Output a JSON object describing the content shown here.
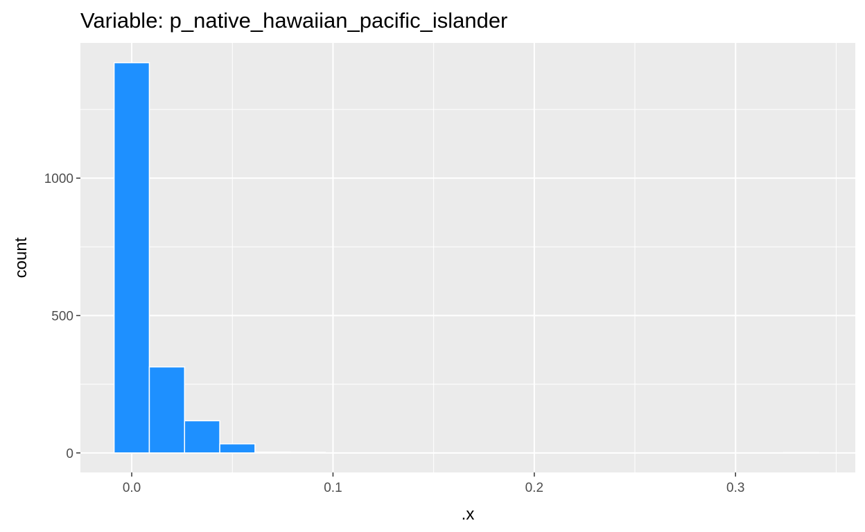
{
  "chart_data": {
    "type": "bar",
    "title": "Variable: p_native_hawaiian_pacific_islander",
    "xlabel": ".x",
    "ylabel": "count",
    "xlim": [
      -0.0255,
      0.3595
    ],
    "ylim": [
      -71,
      1492
    ],
    "x_ticks": [
      0.0,
      0.1,
      0.2,
      0.3
    ],
    "x_tick_labels": [
      "0.0",
      "0.1",
      "0.2",
      "0.3"
    ],
    "y_ticks": [
      0,
      500,
      1000
    ],
    "y_tick_labels": [
      "0",
      "500",
      "1000"
    ],
    "grid": true,
    "legend": "none",
    "bin_width": 0.0175,
    "bins": [
      {
        "x_start": -0.00875,
        "x_end": 0.00875,
        "count": 1420
      },
      {
        "x_start": 0.00875,
        "x_end": 0.02625,
        "count": 313
      },
      {
        "x_start": 0.02625,
        "x_end": 0.04375,
        "count": 117
      },
      {
        "x_start": 0.04375,
        "x_end": 0.06125,
        "count": 33
      },
      {
        "x_start": 0.06125,
        "x_end": 0.07875,
        "count": 3
      },
      {
        "x_start": 0.07875,
        "x_end": 0.09625,
        "count": 2
      },
      {
        "x_start": 0.09625,
        "x_end": 0.11375,
        "count": 0
      },
      {
        "x_start": 0.11375,
        "x_end": 0.13125,
        "count": 0
      },
      {
        "x_start": 0.13125,
        "x_end": 0.14875,
        "count": 0
      },
      {
        "x_start": 0.14875,
        "x_end": 0.16625,
        "count": 0
      },
      {
        "x_start": 0.16625,
        "x_end": 0.18375,
        "count": 0
      },
      {
        "x_start": 0.18375,
        "x_end": 0.20125,
        "count": 0
      },
      {
        "x_start": 0.20125,
        "x_end": 0.21875,
        "count": 0
      },
      {
        "x_start": 0.21875,
        "x_end": 0.23625,
        "count": 0
      },
      {
        "x_start": 0.23625,
        "x_end": 0.25375,
        "count": 0
      },
      {
        "x_start": 0.25375,
        "x_end": 0.27125,
        "count": 0
      },
      {
        "x_start": 0.27125,
        "x_end": 0.28875,
        "count": 0
      },
      {
        "x_start": 0.28875,
        "x_end": 0.30625,
        "count": 0
      },
      {
        "x_start": 0.30625,
        "x_end": 0.32375,
        "count": 0
      },
      {
        "x_start": 0.32375,
        "x_end": 0.34125,
        "count": 1
      }
    ],
    "colors": {
      "bar_fill": "#1E90FF",
      "bar_outline": "#FFFFFF",
      "panel_background": "#EBEBEB",
      "grid": "#FFFFFF",
      "tick_label": "#4D4D4D",
      "tick_mark": "#333333"
    }
  }
}
